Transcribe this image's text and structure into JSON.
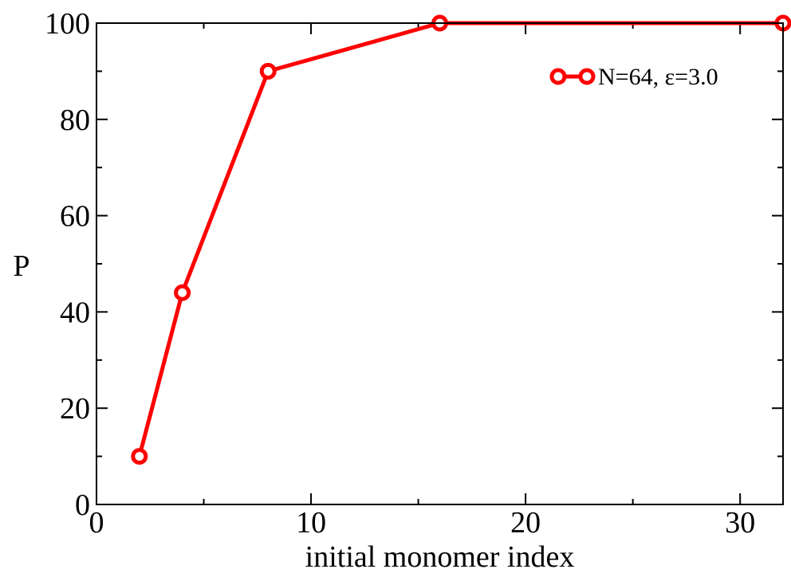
{
  "chart_data": {
    "type": "line",
    "title": "",
    "xlabel": "initial monomer index",
    "ylabel": "P",
    "xlim": [
      0,
      32
    ],
    "ylim": [
      0,
      100
    ],
    "x_ticks": [
      0,
      10,
      20,
      30
    ],
    "x_tick_labels": [
      "0",
      "10",
      "20",
      "30"
    ],
    "y_ticks": [
      0,
      20,
      40,
      60,
      80,
      100
    ],
    "y_tick_labels": [
      "0",
      "20",
      "40",
      "60",
      "80",
      "100"
    ],
    "x_minor_step": 5,
    "y_minor_step": 10,
    "grid": false,
    "legend_position": "top-right",
    "series": [
      {
        "name": "N=64, ε=3.0",
        "color": "#ff0000",
        "marker": "open-circle",
        "x": [
          2,
          4,
          8,
          16,
          32
        ],
        "y": [
          10,
          44,
          90,
          100,
          100
        ]
      }
    ]
  }
}
